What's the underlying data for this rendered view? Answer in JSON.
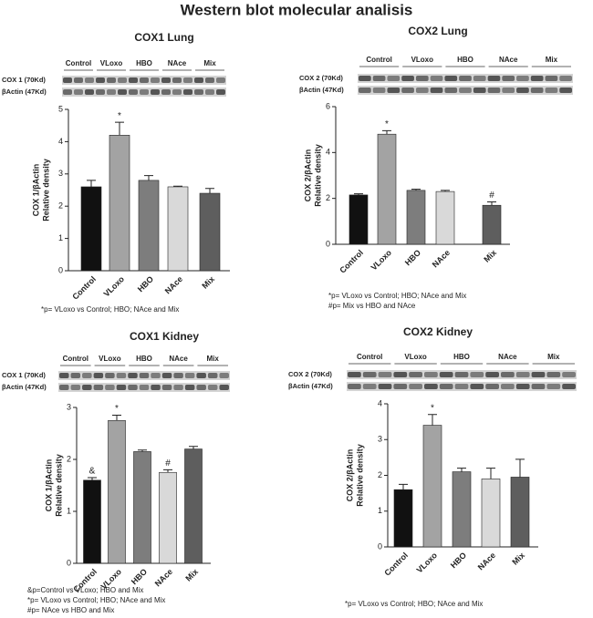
{
  "title": "Western blot molecular analisis",
  "chart_data": [
    {
      "type": "bar",
      "title": "COX1 Lung",
      "blot_lanes": [
        "Control",
        "VLoxo",
        "HBO",
        "NAce",
        "Mix"
      ],
      "blot_rows": [
        "COX 1 (70Kd)",
        "βActin (47Kd)"
      ],
      "ylabel_lines": [
        "COX 1/βActin",
        "Relative density"
      ],
      "categories": [
        "Control",
        "VLoxo",
        "HBO",
        "NAce",
        "Mix"
      ],
      "values": [
        2.6,
        4.2,
        2.8,
        2.6,
        2.4
      ],
      "errors": [
        0.2,
        0.4,
        0.15,
        0.02,
        0.15
      ],
      "markers": [
        null,
        "*",
        null,
        null,
        null
      ],
      "colors": [
        "#111111",
        "#a3a3a3",
        "#7d7d7d",
        "#d9d9d9",
        "#5e5e5e"
      ],
      "ylim": [
        0,
        5
      ],
      "yticks": [
        0,
        1,
        2,
        3,
        4,
        5
      ],
      "footnotes": [
        "*p= VLoxo vs Control; HBO; NAce and Mix"
      ]
    },
    {
      "type": "bar",
      "title": "COX2 Lung",
      "blot_lanes": [
        "Control",
        "VLoxo",
        "HBO",
        "NAce",
        "Mix"
      ],
      "blot_rows": [
        "COX 2 (70Kd)",
        "βActin (47Kd)"
      ],
      "ylabel_lines": [
        "COX 2/βActin",
        "Relative density"
      ],
      "categories": [
        "Control",
        "VLoxo",
        "HBO",
        "NAce",
        "Mix"
      ],
      "values": [
        2.15,
        4.8,
        2.35,
        2.3,
        1.7
      ],
      "errors": [
        0.05,
        0.15,
        0.05,
        0.05,
        0.15
      ],
      "markers": [
        null,
        "*",
        null,
        null,
        "#"
      ],
      "colors": [
        "#111111",
        "#a3a3a3",
        "#7d7d7d",
        "#d9d9d9",
        "#5e5e5e"
      ],
      "ylim": [
        0,
        6
      ],
      "yticks": [
        0,
        2,
        4,
        6
      ],
      "footnotes": [
        "*p= VLoxo vs Control; HBO; NAce and Mix",
        "#p= Mix vs HBO and NAce"
      ]
    },
    {
      "type": "bar",
      "title": "COX1 Kidney",
      "blot_lanes": [
        "Control",
        "VLoxo",
        "HBO",
        "NAce",
        "Mix"
      ],
      "blot_rows": [
        "COX 1 (70Kd)",
        "βActin (47Kd)"
      ],
      "ylabel_lines": [
        "COX 1/βActin",
        "Relative density"
      ],
      "categories": [
        "Control",
        "VLoxo",
        "HBO",
        "NAce",
        "Mix"
      ],
      "values": [
        1.6,
        2.75,
        2.15,
        1.75,
        2.2
      ],
      "errors": [
        0.05,
        0.1,
        0.03,
        0.05,
        0.05
      ],
      "markers": [
        "&",
        "*",
        null,
        "#",
        null
      ],
      "colors": [
        "#111111",
        "#a3a3a3",
        "#7d7d7d",
        "#d9d9d9",
        "#5e5e5e"
      ],
      "ylim": [
        0,
        3
      ],
      "yticks": [
        0,
        1,
        2,
        3
      ],
      "footnotes": [
        "&p=Control vs VLoxo; HBO and Mix",
        "*p= VLoxo vs Control; HBO; NAce and Mix",
        "#p= NAce vs HBO and Mix"
      ]
    },
    {
      "type": "bar",
      "title": "COX2 Kidney",
      "blot_lanes": [
        "Control",
        "VLoxo",
        "HBO",
        "NAce",
        "Mix"
      ],
      "blot_rows": [
        "COX 2 (70Kd)",
        "βActin (47Kd)"
      ],
      "ylabel_lines": [
        "COX 2/βActin",
        "Relative density"
      ],
      "categories": [
        "Control",
        "VLoxo",
        "HBO",
        "NAce",
        "Mix"
      ],
      "values": [
        1.6,
        3.4,
        2.1,
        1.9,
        1.95
      ],
      "errors": [
        0.15,
        0.3,
        0.1,
        0.3,
        0.5
      ],
      "markers": [
        null,
        "*",
        null,
        null,
        null
      ],
      "colors": [
        "#111111",
        "#a3a3a3",
        "#7d7d7d",
        "#d9d9d9",
        "#5e5e5e"
      ],
      "ylim": [
        0,
        4
      ],
      "yticks": [
        0,
        1,
        2,
        3,
        4
      ],
      "footnotes": [
        "*p= VLoxo vs Control; HBO; NAce and Mix"
      ]
    }
  ]
}
